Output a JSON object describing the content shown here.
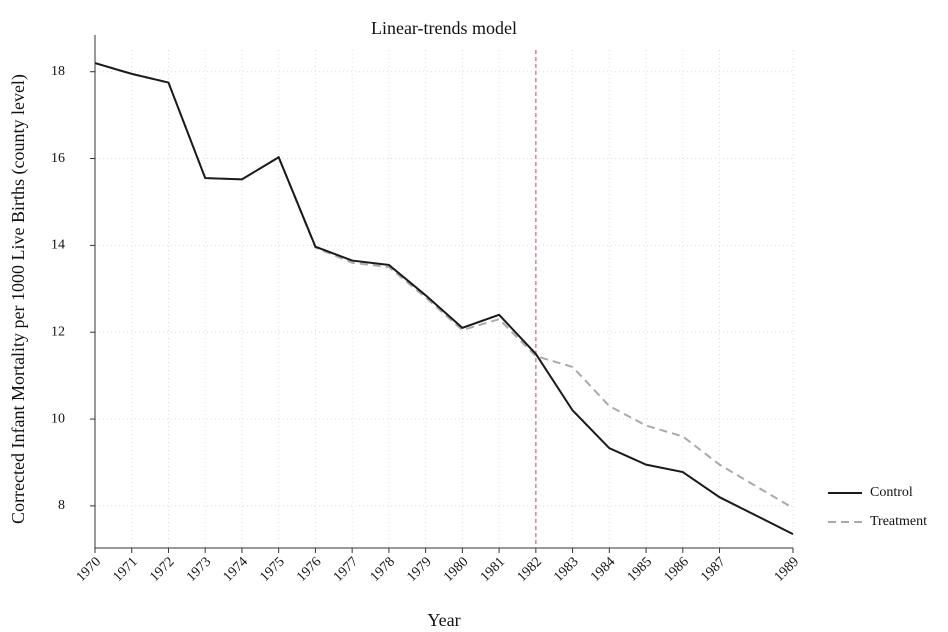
{
  "chart_data": {
    "type": "line",
    "title": "Linear-trends model",
    "x_label": "Year",
    "y_label": "Corrected Infant Mortality per 1000 Live Births (county level)",
    "x": [
      1970,
      1971,
      1972,
      1973,
      1974,
      1975,
      1976,
      1977,
      1978,
      1979,
      1980,
      1981,
      1982,
      1983,
      1984,
      1985,
      1986,
      1987,
      1989
    ],
    "series": [
      {
        "name": "Control",
        "color": "#1a1a1a",
        "dash": "solid",
        "values": [
          18.2,
          17.95,
          17.75,
          15.55,
          15.52,
          16.03,
          13.97,
          13.65,
          13.55,
          12.85,
          12.1,
          12.4,
          11.5,
          10.2,
          9.33,
          8.95,
          8.78,
          8.2,
          7.35
        ]
      },
      {
        "name": "Treatment",
        "color": "#aaaaaa",
        "dash": "dashed",
        "values": [
          18.2,
          17.95,
          17.75,
          15.55,
          15.52,
          16.03,
          13.95,
          13.6,
          13.5,
          12.8,
          12.05,
          12.3,
          11.45,
          11.2,
          10.3,
          9.85,
          9.6,
          8.95,
          7.95
        ]
      }
    ],
    "xlim": [
      1970,
      1989
    ],
    "xticks": [
      1970,
      1971,
      1972,
      1973,
      1974,
      1975,
      1976,
      1977,
      1978,
      1979,
      1980,
      1981,
      1982,
      1983,
      1984,
      1985,
      1986,
      1987,
      1989
    ],
    "ylim": [
      7.03,
      18.5
    ],
    "yticks": [
      8,
      10,
      12,
      14,
      16,
      18
    ],
    "grid": true,
    "reference_line": {
      "x": 1982,
      "color": "#d9809f"
    },
    "legend": "right"
  }
}
